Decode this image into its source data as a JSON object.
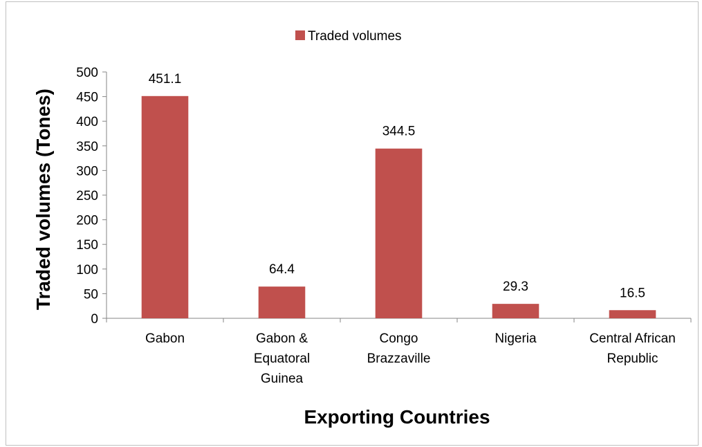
{
  "chart_data": {
    "type": "bar",
    "categories": [
      "Gabon",
      "Gabon & Equatoral Guinea",
      "Congo Brazzaville",
      "Nigeria",
      "Central African Republic"
    ],
    "category_lines": [
      [
        "Gabon"
      ],
      [
        "Gabon &",
        "Equatoral",
        "Guinea"
      ],
      [
        "Congo",
        "Brazzaville"
      ],
      [
        "Nigeria"
      ],
      [
        "Central African",
        "Republic"
      ]
    ],
    "series": [
      {
        "name": "Traded volumes",
        "values": [
          451.1,
          64.4,
          344.5,
          29.3,
          16.5
        ],
        "color": "#c0504d"
      }
    ],
    "data_labels": [
      "451.1",
      "64.4",
      "344.5",
      "29.3",
      "16.5"
    ],
    "xlabel": "Exporting Countries",
    "ylabel": "Traded volumes (Tones)",
    "ylim": [
      0,
      500
    ],
    "yticks": [
      0,
      50,
      100,
      150,
      200,
      250,
      300,
      350,
      400,
      450,
      500
    ],
    "grid": false,
    "legend": "top-center"
  }
}
